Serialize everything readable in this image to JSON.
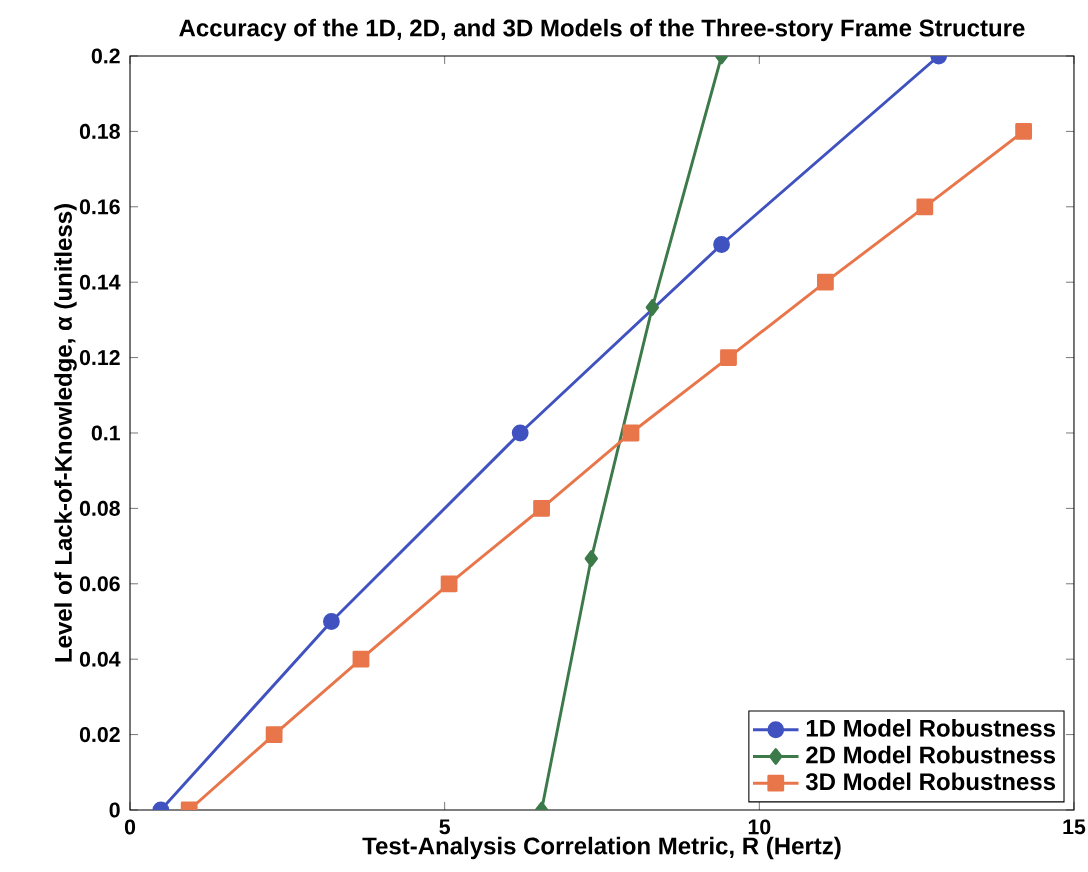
{
  "chart_data": {
    "type": "line",
    "title": "Accuracy of the 1D, 2D, and 3D Models of the Three-story Frame Structure",
    "xlabel": "Test-Analysis Correlation Metric, R (Hertz)",
    "ylabel": "Level of Lack-of-Knowledge, α (unitless)",
    "xlim": [
      0,
      15
    ],
    "ylim": [
      0,
      0.2
    ],
    "xticks": [
      0,
      5,
      10,
      15
    ],
    "yticks": [
      0,
      0.02,
      0.04,
      0.06,
      0.08,
      0.1,
      0.12,
      0.14,
      0.16,
      0.18,
      0.2
    ],
    "legend": "bottom right",
    "grid": false,
    "series": [
      {
        "name": "1D Model Robustness",
        "color": "#4052c0",
        "marker": "circle",
        "x": [
          0.49,
          3.2,
          6.2,
          9.4,
          12.85
        ],
        "values": [
          0,
          0.05,
          0.1,
          0.15,
          0.2
        ]
      },
      {
        "name": "2D Model Robustness",
        "color": "#3d7a4a",
        "marker": "diamond",
        "x": [
          6.54,
          7.33,
          8.3,
          9.4
        ],
        "values": [
          0,
          0.0667,
          0.1333,
          0.2
        ]
      },
      {
        "name": "3D Model Robustness",
        "color": "#e8764a",
        "marker": "square",
        "x": [
          0.94,
          2.29,
          3.67,
          5.07,
          6.54,
          7.96,
          9.51,
          11.05,
          12.63,
          14.2
        ],
        "values": [
          0,
          0.02,
          0.04,
          0.06,
          0.08,
          0.1,
          0.12,
          0.14,
          0.16,
          0.18
        ]
      }
    ]
  }
}
